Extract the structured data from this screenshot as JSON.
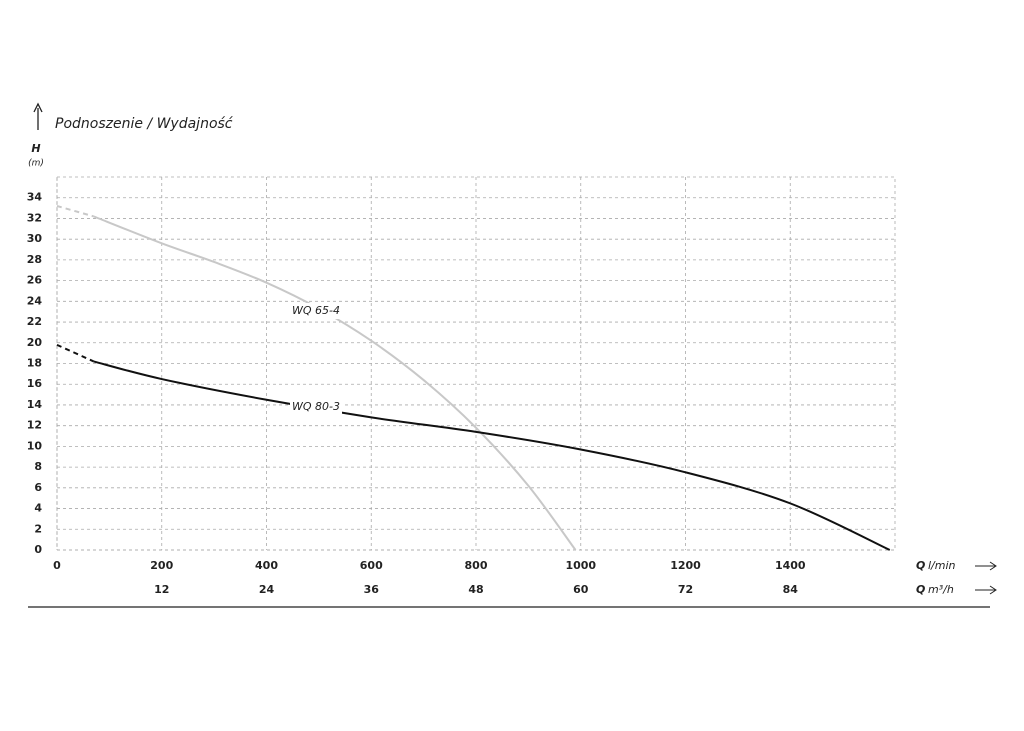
{
  "chart_data": {
    "type": "line",
    "title": "Podnoszenie / Wydajność",
    "y_axis": {
      "symbol": "H",
      "unit": "(m)"
    },
    "x_axis": {
      "symbol": "Q",
      "unit": "l/min"
    },
    "x2_axis": {
      "symbol": "Q",
      "unit": "m³/h"
    },
    "xlim": [
      0,
      1600
    ],
    "xticks": [
      0,
      200,
      400,
      600,
      800,
      1000,
      1200,
      1400
    ],
    "x2lim": [
      0,
      96
    ],
    "x2ticks": [
      12,
      24,
      36,
      48,
      60,
      72,
      84
    ],
    "ylim": [
      0,
      36
    ],
    "yticks": [
      0,
      2,
      4,
      6,
      8,
      10,
      12,
      14,
      16,
      18,
      20,
      22,
      24,
      26,
      28,
      30,
      32,
      34
    ],
    "grid": true,
    "series": [
      {
        "name": "WQ 65-4",
        "color": "#c8c8c8",
        "segments": [
          {
            "style": "dashed",
            "x": [
              0,
              70
            ],
            "values": [
              33.2,
              32.2
            ]
          },
          {
            "style": "solid",
            "x": [
              70,
              200,
              300,
              400,
              500,
              600,
              700,
              800,
              900,
              990
            ],
            "values": [
              32.2,
              29.6,
              27.8,
              25.8,
              23.3,
              20.2,
              16.4,
              11.8,
              6.2,
              0
            ]
          }
        ]
      },
      {
        "name": "WQ 80-3",
        "color": "#111111",
        "segments": [
          {
            "style": "dashed",
            "x": [
              0,
              70
            ],
            "values": [
              19.8,
              18.2
            ]
          },
          {
            "style": "solid",
            "x": [
              70,
              200,
              400,
              600,
              800,
              1000,
              1200,
              1400,
              1590
            ],
            "values": [
              18.2,
              16.5,
              14.5,
              12.8,
              11.4,
              9.7,
              7.5,
              4.5,
              0
            ]
          }
        ]
      }
    ]
  }
}
